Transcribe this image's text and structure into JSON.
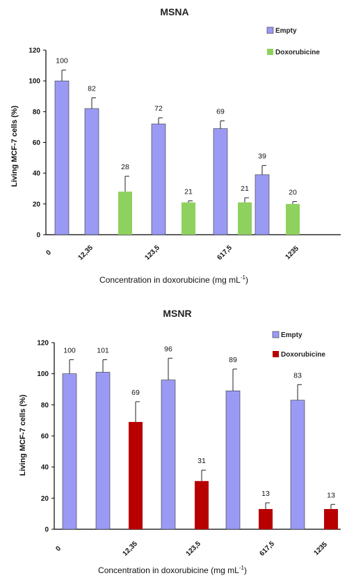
{
  "chart_data": [
    {
      "type": "bar",
      "title": "MSNA",
      "xlabel": "Concentration in doxorubicine (mg mL",
      "xlabel_sup": "-1",
      "xlabel_suffix": ")",
      "ylabel": "Living MCF-7 cells (%)",
      "ylim": [
        0,
        120
      ],
      "yticks": [
        "0",
        "20",
        "40",
        "60",
        "80",
        "100",
        "120"
      ],
      "x_tick_labels": [
        "0",
        "12,35",
        "123,5",
        "617,5",
        "1235"
      ],
      "legend": [
        "Empty",
        "Doxorubicine"
      ],
      "legend_position": "top-right",
      "colors": {
        "Empty": "#9a9af5",
        "Doxorubicine": "#8fd15e"
      },
      "bars": [
        {
          "series": "Empty",
          "category": "0",
          "value": 100,
          "error": 7,
          "label": "100"
        },
        {
          "series": "Empty",
          "category": "12,35",
          "value": 82,
          "error": 7,
          "label": "82"
        },
        {
          "series": "Doxorubicine",
          "category": "12,35",
          "value": 28,
          "error": 10,
          "label": "28"
        },
        {
          "series": "Empty",
          "category": "123,5",
          "value": 72,
          "error": 4,
          "label": "72"
        },
        {
          "series": "Doxorubicine",
          "category": "123,5",
          "value": 21,
          "error": 1,
          "label": "21"
        },
        {
          "series": "Empty",
          "category": "617,5",
          "value": 69,
          "error": 5,
          "label": "69"
        },
        {
          "series": "Doxorubicine",
          "category": "617,5",
          "value": 21,
          "error": 3,
          "label": "21"
        },
        {
          "series": "Empty",
          "category": "1235",
          "value": 39,
          "error": 6,
          "label": "39"
        },
        {
          "series": "Doxorubicine",
          "category": "1235",
          "value": 20,
          "error": 1.5,
          "label": "20"
        }
      ]
    },
    {
      "type": "bar",
      "title": "MSNR",
      "xlabel": "Concentration in doxorubicine (mg mL",
      "xlabel_sup": "-1",
      "xlabel_suffix": ")",
      "ylabel": "Living MCF-7 cells (%)",
      "ylim": [
        0,
        120
      ],
      "yticks": [
        "0",
        "20",
        "40",
        "60",
        "80",
        "100",
        "120"
      ],
      "x_tick_labels": [
        "0",
        "12,35",
        "123,5",
        "617,5",
        "1235"
      ],
      "legend": [
        "Empty",
        "Doxorubicine"
      ],
      "legend_position": "top-right",
      "colors": {
        "Empty": "#9a9af5",
        "Doxorubicine": "#b80000"
      },
      "bars": [
        {
          "series": "Empty",
          "category": "0",
          "value": 100,
          "error": 9,
          "label": "100"
        },
        {
          "series": "Empty",
          "category": "12,35",
          "value": 101,
          "error": 8,
          "label": "101"
        },
        {
          "series": "Doxorubicine",
          "category": "12,35",
          "value": 69,
          "error": 13,
          "label": "69"
        },
        {
          "series": "Empty",
          "category": "123,5",
          "value": 96,
          "error": 14,
          "label": "96"
        },
        {
          "series": "Doxorubicine",
          "category": "123,5",
          "value": 31,
          "error": 7,
          "label": "31"
        },
        {
          "series": "Empty",
          "category": "617,5",
          "value": 89,
          "error": 14,
          "label": "89"
        },
        {
          "series": "Doxorubicine",
          "category": "617,5",
          "value": 13,
          "error": 4,
          "label": "13"
        },
        {
          "series": "Empty",
          "category": "1235",
          "value": 83,
          "error": 10,
          "label": "83"
        },
        {
          "series": "Doxorubicine",
          "category": "1235",
          "value": 13,
          "error": 3,
          "label": "13"
        }
      ]
    }
  ]
}
